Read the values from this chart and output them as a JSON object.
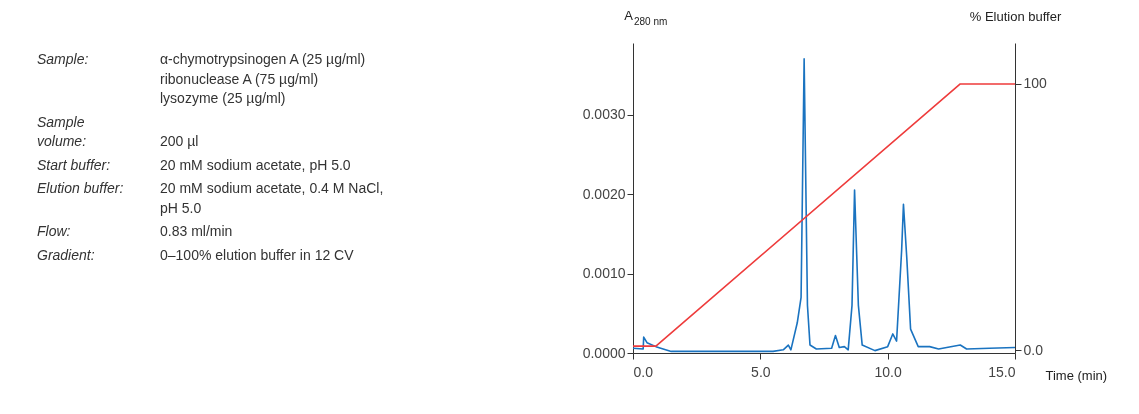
{
  "chart_data": {
    "type": "line",
    "ylabel": "A$_{280 nm}$",
    "y2label": "% Elution buffer",
    "xlabel": "Time (min)",
    "annotations": [
      "Sample:",
      "α-chymotrypsinogen A (25 µg/ml)\nribonuclease A (75 µg/ml)\nlysozyme (25 µg/ml)",
      "Sample\nvolume:",
      "200 µl",
      "Start buffer:",
      "20 mM sodium acetate, pH 5.0",
      "Elution buffer:",
      "20 mM sodium acetate, 0.4 M NaCl,\npH 5.0",
      "Flow:",
      "0.83 ml/min",
      "Gradient:",
      "0–100% elution buffer in 12 CV"
    ],
    "series": [
      {
        "color": "#1a73c0",
        "x": [
          0,
          0.4,
          0.42,
          0.55,
          0.9,
          1.5,
          4.5,
          5.5,
          5.9,
          6.1,
          6.2,
          6.45,
          6.6,
          6.72,
          6.85,
          6.95,
          7.2,
          7.8,
          7.95,
          8.1,
          8.3,
          8.45,
          8.6,
          8.7,
          8.85,
          9.0,
          9.5,
          10.0,
          10.2,
          10.35,
          10.55,
          10.62,
          10.75,
          10.9,
          11.2,
          11.65,
          12.0,
          12.85,
          13.1,
          14.0,
          15.0
        ],
        "values": [
          6e-05,
          5e-05,
          0.0002,
          0.00013,
          8e-05,
          2e-05,
          2e-05,
          2e-05,
          4e-05,
          0.0001,
          4e-05,
          0.00038,
          0.0007,
          0.0037,
          0.0006,
          0.0001,
          5e-05,
          6e-05,
          0.00022,
          7e-05,
          8e-05,
          4e-05,
          0.0006,
          0.00205,
          0.0006,
          0.0001,
          3e-05,
          8e-05,
          0.00024,
          0.00015,
          0.0013,
          0.00187,
          0.0012,
          0.0003,
          8e-05,
          8e-05,
          5e-05,
          0.0001,
          5e-05,
          6e-05,
          7e-05
        ]
      },
      {
        "color": "#ee3b3b",
        "axis": "y2",
        "x": [
          0,
          0.9,
          12.85,
          15.0
        ],
        "values": [
          1.5,
          1.5,
          100,
          100
        ]
      }
    ],
    "xlim": [
      0,
      15
    ],
    "xticks": [
      {
        "value": 0,
        "label": "0.0"
      },
      {
        "value": 5,
        "label": "5.0"
      },
      {
        "value": 10,
        "label": "10.0"
      },
      {
        "value": 15,
        "label": "15.0"
      }
    ],
    "ylim": [
      0,
      0.0039
    ],
    "yticks": [
      {
        "value": 0,
        "label": "0.0000"
      },
      {
        "value": 0.001,
        "label": "0.0010"
      },
      {
        "value": 0.002,
        "label": "0.0020"
      },
      {
        "value": 0.003,
        "label": "0.0030"
      }
    ],
    "y2lim": [
      -1.1,
      115.4
    ],
    "y2ticks": [
      {
        "value": 0,
        "label": "0.0"
      },
      100
    ],
    "grid": false
  }
}
